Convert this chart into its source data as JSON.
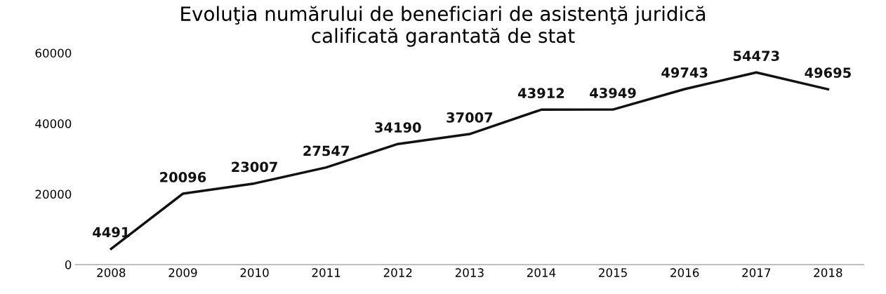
{
  "chart_data": {
    "type": "line",
    "title": "Evoluţia numărului de beneficiari de asistenţă juridică\ncalificată garantată de stat",
    "categories": [
      "2008",
      "2009",
      "2010",
      "2011",
      "2012",
      "2013",
      "2014",
      "2015",
      "2016",
      "2017",
      "2018"
    ],
    "series": [
      {
        "color": "#111111",
        "values": [
          4491,
          20096,
          23007,
          27547,
          34190,
          37007,
          43912,
          43949,
          49743,
          54473,
          49695
        ]
      }
    ],
    "ylim": [
      0,
      60000
    ],
    "yticks": [
      0,
      20000,
      40000,
      60000
    ],
    "data_labels": true,
    "grid": false,
    "legend": false,
    "marker": "none",
    "line_style": "solid"
  }
}
